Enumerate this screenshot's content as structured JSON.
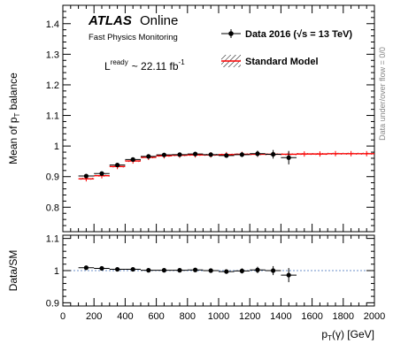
{
  "chart_data": [
    {
      "type": "scatter",
      "panel": "main",
      "ylabel_main": "Mean of p",
      "ylabel_sub": "T",
      "ylabel_tail": " balance",
      "xlim": [
        0,
        2000
      ],
      "ylim": [
        0.72,
        1.46
      ],
      "y_ticks": [
        0.8,
        0.9,
        1.0,
        1.1,
        1.2,
        1.3,
        1.4
      ],
      "y_tick_labels": [
        "0.8",
        "0.9",
        "1",
        "1.1",
        "1.2",
        "1.3",
        "1.4"
      ],
      "grid": false,
      "legend_position": "top-right",
      "series": [
        {
          "name": "Data 2016 (√s = 13 TeV)",
          "style": "points-with-errors",
          "color": "#000000",
          "x": [
            150,
            250,
            350,
            450,
            550,
            650,
            750,
            850,
            950,
            1050,
            1150,
            1250,
            1350,
            1450
          ],
          "xerr": [
            50,
            50,
            50,
            50,
            50,
            50,
            50,
            50,
            50,
            50,
            50,
            50,
            50,
            50
          ],
          "y": [
            0.902,
            0.91,
            0.938,
            0.956,
            0.966,
            0.971,
            0.972,
            0.974,
            0.972,
            0.969,
            0.972,
            0.975,
            0.973,
            0.962
          ],
          "yerr": [
            0.004,
            0.004,
            0.004,
            0.004,
            0.004,
            0.004,
            0.004,
            0.005,
            0.005,
            0.006,
            0.008,
            0.01,
            0.014,
            0.022
          ]
        },
        {
          "name": "Standard Model",
          "style": "line-with-band",
          "color": "#ff0000",
          "x": [
            150,
            250,
            350,
            450,
            550,
            650,
            750,
            850,
            950,
            1050,
            1150,
            1250,
            1350,
            1450,
            1550,
            1650,
            1750,
            1850,
            1950
          ],
          "xerr": [
            50,
            50,
            50,
            50,
            50,
            50,
            50,
            50,
            50,
            50,
            50,
            50,
            50,
            50,
            50,
            50,
            50,
            50,
            50
          ],
          "y": [
            0.893,
            0.903,
            0.933,
            0.951,
            0.963,
            0.968,
            0.97,
            0.971,
            0.971,
            0.972,
            0.973,
            0.973,
            0.973,
            0.973,
            0.974,
            0.974,
            0.975,
            0.975,
            0.975
          ],
          "yerr": [
            0.003,
            0.003,
            0.003,
            0.003,
            0.003,
            0.003,
            0.003,
            0.003,
            0.003,
            0.003,
            0.003,
            0.003,
            0.003,
            0.003,
            0.003,
            0.003,
            0.003,
            0.003,
            0.003
          ]
        }
      ]
    },
    {
      "type": "scatter",
      "panel": "ratio",
      "ylabel": "Data/SM",
      "xlabel_main": "p",
      "xlabel_sub": "T",
      "xlabel_tail": "(γ) [GeV]",
      "xlim": [
        0,
        2000
      ],
      "ylim": [
        0.89,
        1.11
      ],
      "x_ticks": [
        0,
        200,
        400,
        600,
        800,
        1000,
        1200,
        1400,
        1600,
        1800,
        2000
      ],
      "x_tick_labels": [
        "0",
        "200",
        "400",
        "600",
        "800",
        "1000",
        "1200",
        "1400",
        "1600",
        "1800",
        "2000"
      ],
      "y_ticks": [
        0.9,
        1.0,
        1.1
      ],
      "y_tick_labels": [
        "0.9",
        "1",
        "1.1"
      ],
      "reference_line": 1.0,
      "reference_color": "#6b8fc8",
      "series": [
        {
          "name": "Data/SM",
          "x": [
            150,
            250,
            350,
            450,
            550,
            650,
            750,
            850,
            950,
            1050,
            1150,
            1250,
            1350,
            1450
          ],
          "xerr": [
            50,
            50,
            50,
            50,
            50,
            50,
            50,
            50,
            50,
            50,
            50,
            50,
            50,
            50
          ],
          "y": [
            1.009,
            1.007,
            1.004,
            1.004,
            1.001,
            1.001,
            1.001,
            1.002,
            1.0,
            0.997,
            0.999,
            1.002,
            1.0,
            0.986
          ],
          "yerr": [
            0.004,
            0.004,
            0.004,
            0.004,
            0.004,
            0.004,
            0.004,
            0.005,
            0.005,
            0.006,
            0.008,
            0.01,
            0.014,
            0.022
          ]
        }
      ]
    }
  ],
  "labels": {
    "atlas": "ATLAS",
    "online": "Online",
    "subtitle": "Fast Physics Monitoring",
    "lumi_prefix": "L",
    "lumi_sup": "ready",
    "lumi_value": "~ 22.11 fb",
    "lumi_exp": "-1",
    "legend_data": "Data 2016 (√s = 13 TeV)",
    "legend_sm": "Standard Model",
    "overflow_note": "Data under/over flow = 0/0"
  }
}
